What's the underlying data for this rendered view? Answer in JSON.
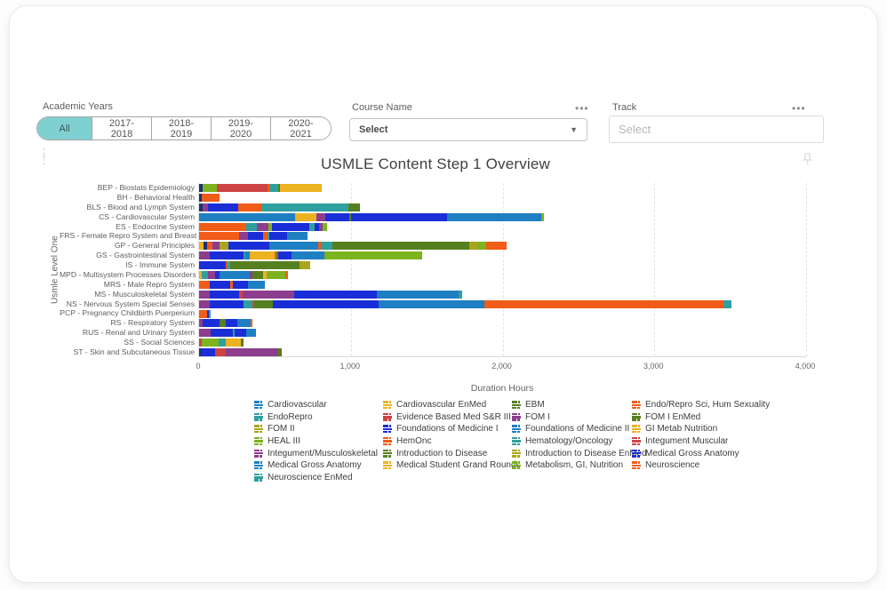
{
  "filters": {
    "academic_years": {
      "label": "Academic Years",
      "options": [
        "All",
        "2017-2018",
        "2018-2019",
        "2019-2020",
        "2020-2021"
      ],
      "selected": "All"
    },
    "course_name": {
      "label": "Course Name",
      "value": "Select",
      "menu_icon": "ellipsis-icon",
      "chevron_icon": "chevron-down-icon"
    },
    "track": {
      "label": "Track",
      "placeholder": "Select",
      "menu_icon": "ellipsis-icon"
    }
  },
  "visual": {
    "grip_icon": "grip-dots-icon",
    "pin_icon": "pin-icon"
  },
  "chart_data": {
    "type": "bar",
    "variant": "horizontal-stacked",
    "title": "USMLE Content Step 1 Overview",
    "xlabel": "Duration Hours",
    "ylabel": "Usmle Level One",
    "xlim": [
      0,
      4000
    ],
    "xticks": [
      "0",
      "1,000",
      "2,000",
      "3,000",
      "4,000"
    ],
    "grid": "vertical-dashed",
    "legend_position": "bottom",
    "palette": {
      "navy": "#1A3378",
      "royal": "#1A2ED8",
      "cerulean": "#1E7FC2",
      "teal": "#2FA0A0",
      "gold": "#EDB21F",
      "orange": "#F25C19",
      "red": "#CC4444",
      "green": "#55801F",
      "brightgreen": "#7CB31F",
      "olive": "#ABA41E",
      "purple": "#8D3D8D"
    },
    "categories": [
      {
        "label": "BEP - Biostats Epidemiology",
        "segments": [
          [
            "navy",
            25
          ],
          [
            "brightgreen",
            90
          ],
          [
            "red",
            335
          ],
          [
            "orange",
            15
          ],
          [
            "teal",
            55
          ],
          [
            "green",
            12
          ],
          [
            "gold",
            275
          ]
        ]
      },
      {
        "label": "BH - Behavioral Health",
        "segments": [
          [
            "navy",
            20
          ],
          [
            "orange",
            115
          ]
        ]
      },
      {
        "label": "BLS - Blood and Lymph System",
        "segments": [
          [
            "navy",
            25
          ],
          [
            "purple",
            35
          ],
          [
            "royal",
            195
          ],
          [
            "orange",
            155
          ],
          [
            "teal",
            575
          ],
          [
            "green",
            75
          ]
        ]
      },
      {
        "label": "CS - Cardiovascular System",
        "segments": [
          [
            "cerulean",
            630
          ],
          [
            "gold",
            143
          ],
          [
            "purple",
            59
          ],
          [
            "royal",
            157
          ],
          [
            "green",
            12
          ],
          [
            "royal",
            635
          ],
          [
            "cerulean",
            617
          ],
          [
            "brightgreen",
            18
          ]
        ]
      },
      {
        "label": "ES - Endocrine System",
        "segments": [
          [
            "orange",
            313
          ],
          [
            "teal",
            68
          ],
          [
            "purple",
            78
          ],
          [
            "brightgreen",
            20
          ],
          [
            "royal",
            245
          ],
          [
            "teal",
            35
          ],
          [
            "royal",
            31
          ],
          [
            "purple",
            22
          ],
          [
            "brightgreen",
            33
          ]
        ]
      },
      {
        "label": "FRS - Female Repro System and Breast",
        "segments": [
          [
            "orange",
            264
          ],
          [
            "purple",
            59
          ],
          [
            "royal",
            98
          ],
          [
            "orange",
            29
          ],
          [
            "teal",
            10
          ],
          [
            "royal",
            118
          ],
          [
            "cerulean",
            137
          ]
        ]
      },
      {
        "label": "GP - General Principles",
        "segments": [
          [
            "gold",
            30
          ],
          [
            "navy",
            20
          ],
          [
            "orange",
            40
          ],
          [
            "purple",
            45
          ],
          [
            "olive",
            60
          ],
          [
            "royal",
            270
          ],
          [
            "cerulean",
            320
          ],
          [
            "orange",
            15
          ],
          [
            "teal",
            80
          ],
          [
            "green",
            900
          ],
          [
            "olive",
            55
          ],
          [
            "brightgreen",
            60
          ],
          [
            "orange",
            130
          ]
        ]
      },
      {
        "label": "GS - Gastrointestinal System",
        "segments": [
          [
            "purple",
            68
          ],
          [
            "royal",
            225
          ],
          [
            "teal",
            12
          ],
          [
            "cerulean",
            29
          ],
          [
            "gold",
            166
          ],
          [
            "orange",
            10
          ],
          [
            "green",
            12
          ],
          [
            "royal",
            88
          ],
          [
            "cerulean",
            215
          ],
          [
            "brightgreen",
            646
          ]
        ]
      },
      {
        "label": "IS - Immune System",
        "segments": [
          [
            "royal",
            176
          ],
          [
            "orange",
            12
          ],
          [
            "teal",
            15
          ],
          [
            "green",
            460
          ],
          [
            "olive",
            68
          ]
        ]
      },
      {
        "label": "MPD - Multisystem Processes Disorders",
        "segments": [
          [
            "gold",
            16
          ],
          [
            "teal",
            43
          ],
          [
            "purple",
            49
          ],
          [
            "royal",
            29
          ],
          [
            "cerulean",
            196
          ],
          [
            "purple",
            20
          ],
          [
            "green",
            68
          ],
          [
            "gold",
            25
          ],
          [
            "brightgreen",
            121
          ],
          [
            "orange",
            20
          ]
        ]
      },
      {
        "label": "MRS - Male Repro System",
        "segments": [
          [
            "orange",
            68
          ],
          [
            "royal",
            137
          ],
          [
            "orange",
            20
          ],
          [
            "royal",
            98
          ],
          [
            "cerulean",
            108
          ]
        ]
      },
      {
        "label": "MS - Musculoskeletal System",
        "segments": [
          [
            "purple",
            68
          ],
          [
            "royal",
            196
          ],
          [
            "red",
            25
          ],
          [
            "purple",
            337
          ],
          [
            "royal",
            548
          ],
          [
            "cerulean",
            538
          ],
          [
            "teal",
            20
          ]
        ]
      },
      {
        "label": "NS - Nervous System Special Senses",
        "segments": [
          [
            "purple",
            68
          ],
          [
            "royal",
            225
          ],
          [
            "teal",
            59
          ],
          [
            "red",
            10
          ],
          [
            "green",
            127
          ],
          [
            "royal",
            695
          ],
          [
            "cerulean",
            695
          ],
          [
            "orange",
            1575
          ],
          [
            "teal",
            53
          ]
        ]
      },
      {
        "label": "PCP - Pregnancy Childbirth Puerperium",
        "segments": [
          [
            "orange",
            50
          ],
          [
            "royal",
            15
          ],
          [
            "teal",
            12
          ]
        ]
      },
      {
        "label": "RS - Respiratory System",
        "segments": [
          [
            "purple",
            23
          ],
          [
            "royal",
            113
          ],
          [
            "green",
            39
          ],
          [
            "royal",
            78
          ],
          [
            "cerulean",
            88
          ],
          [
            "orange",
            10
          ]
        ]
      },
      {
        "label": "RUS - Renal and Urinary System",
        "segments": [
          [
            "purple",
            78
          ],
          [
            "royal",
            145
          ],
          [
            "teal",
            10
          ],
          [
            "royal",
            75
          ],
          [
            "cerulean",
            68
          ]
        ]
      },
      {
        "label": "SS - Social Sciences",
        "segments": [
          [
            "red",
            16
          ],
          [
            "brightgreen",
            112
          ],
          [
            "teal",
            49
          ],
          [
            "gold",
            98
          ],
          [
            "green",
            16
          ]
        ]
      },
      {
        "label": "ST - Skin and Subcutaneous Tissue",
        "segments": [
          [
            "navy",
            16
          ],
          [
            "royal",
            92
          ],
          [
            "red",
            69
          ],
          [
            "purple",
            343
          ],
          [
            "green",
            24
          ]
        ]
      }
    ],
    "legend_columns": [
      [
        {
          "label": "Cardiovascular",
          "color": "cerulean"
        },
        {
          "label": "EndoRepro",
          "color": "teal"
        },
        {
          "label": "FOM II",
          "color": "olive"
        },
        {
          "label": "HEAL III",
          "color": "brightgreen"
        },
        {
          "label": "Integument/Musculoskeletal",
          "color": "purple"
        },
        {
          "label": "Medical Gross Anatomy",
          "color": "cerulean"
        },
        {
          "label": "Neuroscience EnMed",
          "color": "teal"
        }
      ],
      [
        {
          "label": "Cardiovascular EnMed",
          "color": "gold"
        },
        {
          "label": "Evidence Based Med S&R III",
          "color": "red"
        },
        {
          "label": "Foundations of Medicine I",
          "color": "royal"
        },
        {
          "label": "HemOnc",
          "color": "orange"
        },
        {
          "label": "Introduction to Disease",
          "color": "green"
        },
        {
          "label": "Medical Student Grand Rounds",
          "color": "gold"
        }
      ],
      [
        {
          "label": "EBM",
          "color": "green"
        },
        {
          "label": "FOM I",
          "color": "purple"
        },
        {
          "label": "Foundations of Medicine II",
          "color": "cerulean"
        },
        {
          "label": "Hematology/Oncology",
          "color": "teal"
        },
        {
          "label": "Introduction to Disease EnMed",
          "color": "olive"
        },
        {
          "label": "Metabolism, GI, Nutrition",
          "color": "brightgreen"
        }
      ],
      [
        {
          "label": "Endo/Repro Sci, Hum Sexuality",
          "color": "orange"
        },
        {
          "label": "FOM I EnMed",
          "color": "green"
        },
        {
          "label": "GI Metab Nutrition",
          "color": "gold"
        },
        {
          "label": "Integument Muscular",
          "color": "red"
        },
        {
          "label": "Medical Gross Anatomy",
          "color": "royal"
        },
        {
          "label": "Neuroscience",
          "color": "orange"
        }
      ]
    ]
  }
}
